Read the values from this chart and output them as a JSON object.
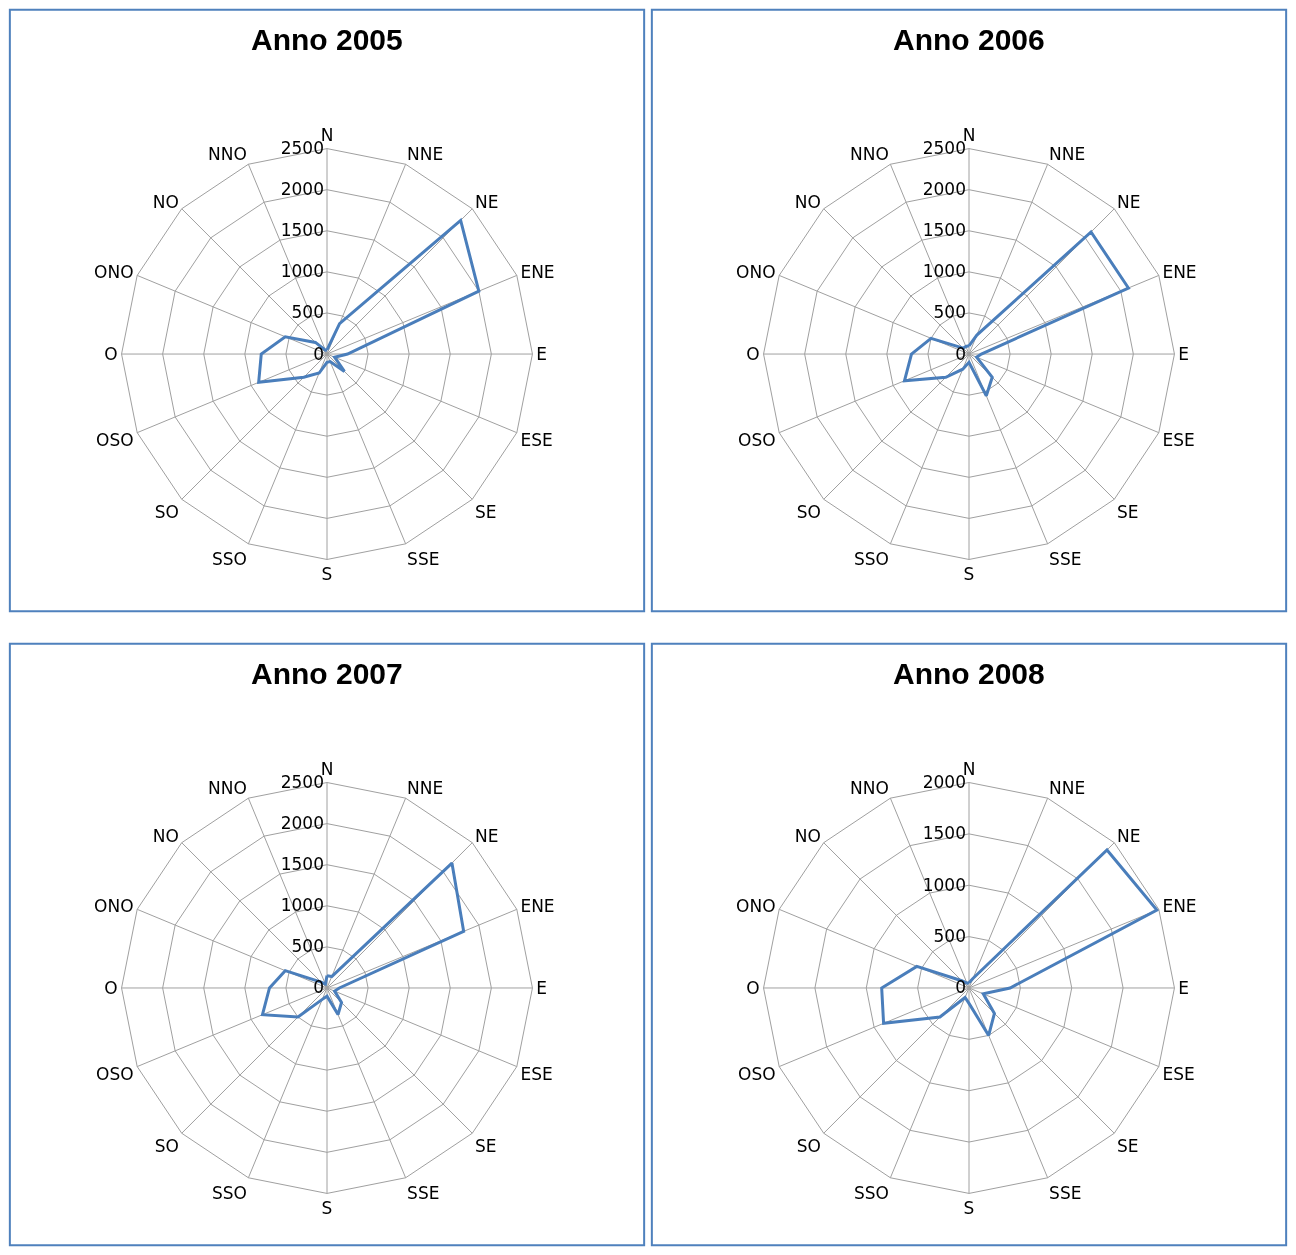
{
  "chart_data": [
    {
      "type": "radar",
      "title": "Anno 2005",
      "categories": [
        "N",
        "NNE",
        "NE",
        "ENE",
        "E",
        "ESE",
        "SE",
        "SSE",
        "S",
        "SSO",
        "SO",
        "OSO",
        "O",
        "ONO",
        "NO",
        "NNO"
      ],
      "series": [
        {
          "color": "#4a7ebb",
          "values": [
            50,
            400,
            2300,
            2000,
            250,
            100,
            300,
            100,
            100,
            250,
            400,
            900,
            800,
            550,
            200,
            50
          ]
        }
      ],
      "ylim": [
        0,
        2500
      ],
      "yticks": [
        0,
        500,
        1000,
        1500,
        2000,
        2500
      ],
      "grid": true
    },
    {
      "type": "radar",
      "title": "Anno 2006",
      "categories": [
        "N",
        "NNE",
        "NE",
        "ENE",
        "E",
        "ESE",
        "SE",
        "SSE",
        "S",
        "SSO",
        "SO",
        "OSO",
        "O",
        "ONO",
        "NO",
        "NNO"
      ],
      "series": [
        {
          "color": "#4a7ebb",
          "values": [
            100,
            250,
            2100,
            2100,
            150,
            100,
            400,
            550,
            100,
            200,
            400,
            850,
            700,
            500,
            100,
            100
          ]
        }
      ],
      "ylim": [
        0,
        2500
      ],
      "yticks": [
        0,
        500,
        1000,
        1500,
        2000,
        2500
      ],
      "grid": true
    },
    {
      "type": "radar",
      "title": "Anno 2007",
      "categories": [
        "N",
        "NNE",
        "NE",
        "ENE",
        "E",
        "ESE",
        "SE",
        "SSE",
        "S",
        "SSO",
        "SO",
        "OSO",
        "O",
        "ONO",
        "NO",
        "NNO"
      ],
      "series": [
        {
          "color": "#4a7ebb",
          "values": [
            150,
            150,
            2150,
            1800,
            150,
            100,
            250,
            350,
            100,
            150,
            500,
            850,
            700,
            550,
            100,
            50
          ]
        }
      ],
      "ylim": [
        0,
        2500
      ],
      "yticks": [
        0,
        500,
        1000,
        1500,
        2000,
        2500
      ],
      "grid": true
    },
    {
      "type": "radar",
      "title": "Anno 2008",
      "categories": [
        "N",
        "NNE",
        "NE",
        "ENE",
        "E",
        "ESE",
        "SE",
        "SSE",
        "S",
        "SSO",
        "SO",
        "OSO",
        "O",
        "ONO",
        "NO",
        "NNO"
      ],
      "series": [
        {
          "color": "#4a7ebb",
          "values": [
            50,
            100,
            1900,
            1980,
            400,
            150,
            350,
            500,
            150,
            100,
            400,
            900,
            850,
            550,
            100,
            50
          ]
        }
      ],
      "ylim": [
        0,
        2000
      ],
      "yticks": [
        0,
        500,
        1000,
        1500,
        2000
      ],
      "grid": true
    }
  ]
}
